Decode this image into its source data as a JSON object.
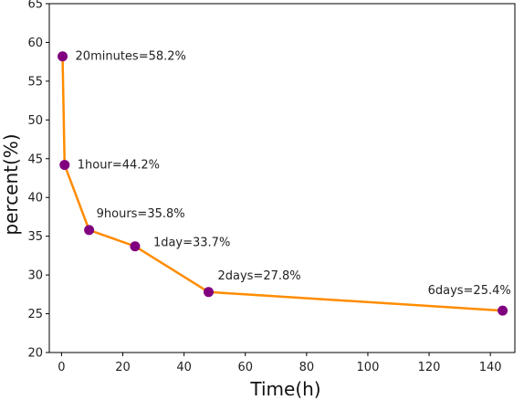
{
  "chart_data": {
    "type": "line",
    "title": "",
    "xlabel": "Time(h)",
    "ylabel": "percent(%)",
    "xlim": [
      -4,
      148
    ],
    "ylim": [
      20,
      65
    ],
    "xticks": [
      0,
      20,
      40,
      60,
      80,
      100,
      120,
      140
    ],
    "yticks": [
      20,
      25,
      30,
      35,
      40,
      45,
      50,
      55,
      60,
      65
    ],
    "grid": false,
    "line_color": "#ff8c00",
    "marker_color": "#800080",
    "series": [
      {
        "x": [
          0.333,
          1,
          9,
          24,
          48,
          144
        ],
        "values": [
          58.2,
          44.2,
          35.8,
          33.7,
          27.8,
          25.4
        ],
        "labels": [
          "20minutes=58.2%",
          "1hour=44.2%",
          "9hours=35.8%",
          "1day=33.7%",
          "2days=27.8%",
          "6days=25.4%"
        ]
      }
    ]
  }
}
